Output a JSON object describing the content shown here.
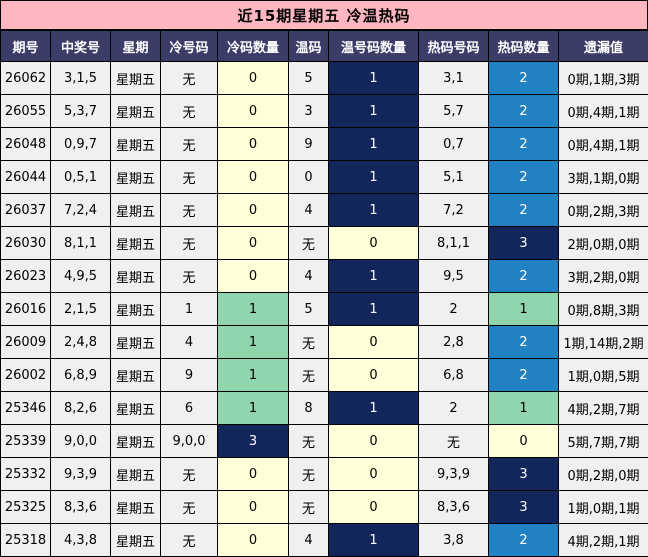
{
  "title": "近15期星期五 冷温热码",
  "colors": {
    "title_bg": "#ffb6c1",
    "header_bg": "#3c3c68",
    "header_text": "#ffffff",
    "cell_bg": "#f0f0f0",
    "yellow": "#ffffd9",
    "green": "#90d5ab",
    "navy": "#13265c",
    "blue": "#2182c3",
    "border": "#000000"
  },
  "chart_data": {
    "type": "table",
    "title": "近15期星期五 冷温热码",
    "columns": [
      "期号",
      "中奖号",
      "星期",
      "冷号码",
      "冷码数量",
      "温码",
      "温号码数量",
      "热码号码",
      "热码数量",
      "遗漏值"
    ],
    "rows": [
      {
        "period": "26062",
        "winning": "3,1,5",
        "week": "星期五",
        "cold_nums": "无",
        "cold_count": "0",
        "cold_style": "yellow",
        "warm_nums": "5",
        "warm_count": "1",
        "warm_style": "navy",
        "hot_nums": "3,1",
        "hot_count": "2",
        "hot_style": "blue",
        "omission": "0期,1期,3期"
      },
      {
        "period": "26055",
        "winning": "5,3,7",
        "week": "星期五",
        "cold_nums": "无",
        "cold_count": "0",
        "cold_style": "yellow",
        "warm_nums": "3",
        "warm_count": "1",
        "warm_style": "navy",
        "hot_nums": "5,7",
        "hot_count": "2",
        "hot_style": "blue",
        "omission": "0期,4期,1期"
      },
      {
        "period": "26048",
        "winning": "0,9,7",
        "week": "星期五",
        "cold_nums": "无",
        "cold_count": "0",
        "cold_style": "yellow",
        "warm_nums": "9",
        "warm_count": "1",
        "warm_style": "navy",
        "hot_nums": "0,7",
        "hot_count": "2",
        "hot_style": "blue",
        "omission": "0期,4期,1期"
      },
      {
        "period": "26044",
        "winning": "0,5,1",
        "week": "星期五",
        "cold_nums": "无",
        "cold_count": "0",
        "cold_style": "yellow",
        "warm_nums": "0",
        "warm_count": "1",
        "warm_style": "navy",
        "hot_nums": "5,1",
        "hot_count": "2",
        "hot_style": "blue",
        "omission": "3期,1期,0期"
      },
      {
        "period": "26037",
        "winning": "7,2,4",
        "week": "星期五",
        "cold_nums": "无",
        "cold_count": "0",
        "cold_style": "yellow",
        "warm_nums": "4",
        "warm_count": "1",
        "warm_style": "navy",
        "hot_nums": "7,2",
        "hot_count": "2",
        "hot_style": "blue",
        "omission": "0期,2期,3期"
      },
      {
        "period": "26030",
        "winning": "8,1,1",
        "week": "星期五",
        "cold_nums": "无",
        "cold_count": "0",
        "cold_style": "yellow",
        "warm_nums": "无",
        "warm_count": "0",
        "warm_style": "yellow",
        "hot_nums": "8,1,1",
        "hot_count": "3",
        "hot_style": "navy",
        "omission": "2期,0期,0期"
      },
      {
        "period": "26023",
        "winning": "4,9,5",
        "week": "星期五",
        "cold_nums": "无",
        "cold_count": "0",
        "cold_style": "yellow",
        "warm_nums": "4",
        "warm_count": "1",
        "warm_style": "navy",
        "hot_nums": "9,5",
        "hot_count": "2",
        "hot_style": "blue",
        "omission": "3期,2期,0期"
      },
      {
        "period": "26016",
        "winning": "2,1,5",
        "week": "星期五",
        "cold_nums": "1",
        "cold_count": "1",
        "cold_style": "green",
        "warm_nums": "5",
        "warm_count": "1",
        "warm_style": "navy",
        "hot_nums": "2",
        "hot_count": "1",
        "hot_style": "green",
        "omission": "0期,8期,3期"
      },
      {
        "period": "26009",
        "winning": "2,4,8",
        "week": "星期五",
        "cold_nums": "4",
        "cold_count": "1",
        "cold_style": "green",
        "warm_nums": "无",
        "warm_count": "0",
        "warm_style": "yellow",
        "hot_nums": "2,8",
        "hot_count": "2",
        "hot_style": "blue",
        "omission": "1期,14期,2期"
      },
      {
        "period": "26002",
        "winning": "6,8,9",
        "week": "星期五",
        "cold_nums": "9",
        "cold_count": "1",
        "cold_style": "green",
        "warm_nums": "无",
        "warm_count": "0",
        "warm_style": "yellow",
        "hot_nums": "6,8",
        "hot_count": "2",
        "hot_style": "blue",
        "omission": "1期,0期,5期"
      },
      {
        "period": "25346",
        "winning": "8,2,6",
        "week": "星期五",
        "cold_nums": "6",
        "cold_count": "1",
        "cold_style": "green",
        "warm_nums": "8",
        "warm_count": "1",
        "warm_style": "navy",
        "hot_nums": "2",
        "hot_count": "1",
        "hot_style": "green",
        "omission": "4期,2期,7期"
      },
      {
        "period": "25339",
        "winning": "9,0,0",
        "week": "星期五",
        "cold_nums": "9,0,0",
        "cold_count": "3",
        "cold_style": "navy",
        "warm_nums": "无",
        "warm_count": "0",
        "warm_style": "yellow",
        "hot_nums": "无",
        "hot_count": "0",
        "hot_style": "yellow",
        "omission": "5期,7期,7期"
      },
      {
        "period": "25332",
        "winning": "9,3,9",
        "week": "星期五",
        "cold_nums": "无",
        "cold_count": "0",
        "cold_style": "yellow",
        "warm_nums": "无",
        "warm_count": "0",
        "warm_style": "yellow",
        "hot_nums": "9,3,9",
        "hot_count": "3",
        "hot_style": "navy",
        "omission": "0期,2期,0期"
      },
      {
        "period": "25325",
        "winning": "8,3,6",
        "week": "星期五",
        "cold_nums": "无",
        "cold_count": "0",
        "cold_style": "yellow",
        "warm_nums": "无",
        "warm_count": "0",
        "warm_style": "yellow",
        "hot_nums": "8,3,6",
        "hot_count": "3",
        "hot_style": "navy",
        "omission": "1期,0期,1期"
      },
      {
        "period": "25318",
        "winning": "4,3,8",
        "week": "星期五",
        "cold_nums": "无",
        "cold_count": "0",
        "cold_style": "yellow",
        "warm_nums": "4",
        "warm_count": "1",
        "warm_style": "navy",
        "hot_nums": "3,8",
        "hot_count": "2",
        "hot_style": "blue",
        "omission": "4期,2期,1期"
      }
    ]
  }
}
